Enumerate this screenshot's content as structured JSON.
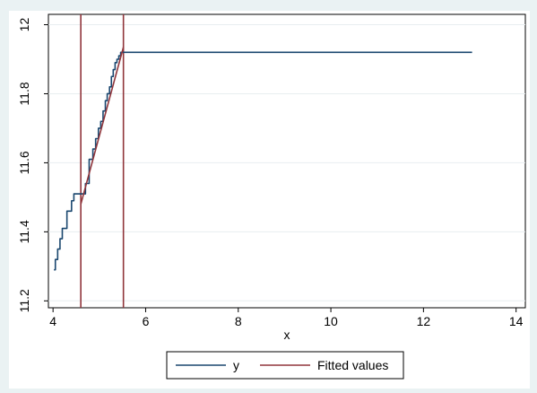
{
  "chart_data": {
    "type": "line",
    "xlabel": "x",
    "ylabel": "",
    "xlim": [
      3.9,
      14.2
    ],
    "ylim": [
      11.18,
      12.03
    ],
    "xticks": [
      4,
      6,
      8,
      10,
      12,
      14
    ],
    "yticks": [
      11.2,
      11.4,
      11.6,
      11.8,
      12
    ],
    "ytick_labels": [
      "11.2",
      "11.4",
      "11.6",
      "11.8",
      "12"
    ],
    "grid": "y",
    "legend_position": "bottom",
    "series": [
      {
        "name": "y",
        "color": "#1a476f",
        "step": true,
        "x": [
          4.02,
          4.05,
          4.1,
          4.15,
          4.2,
          4.3,
          4.4,
          4.45,
          4.6,
          4.7,
          4.78,
          4.86,
          4.92,
          4.98,
          5.03,
          5.08,
          5.13,
          5.17,
          5.22,
          5.26,
          5.3,
          5.34,
          5.38,
          5.42,
          5.46,
          5.5,
          13.05
        ],
        "values": [
          11.29,
          11.32,
          11.35,
          11.38,
          11.41,
          11.46,
          11.49,
          11.51,
          11.51,
          11.54,
          11.61,
          11.64,
          11.67,
          11.7,
          11.72,
          11.75,
          11.78,
          11.8,
          11.82,
          11.85,
          11.87,
          11.89,
          11.9,
          11.91,
          11.92,
          11.92,
          11.92
        ]
      },
      {
        "name": "Fitted values",
        "color": "#90353b",
        "x": [
          4.6,
          5.52
        ],
        "values": [
          11.48,
          11.935
        ]
      }
    ],
    "vlines": [
      {
        "x": 4.6,
        "color": "#90353b"
      },
      {
        "x": 5.52,
        "color": "#90353b"
      }
    ]
  }
}
